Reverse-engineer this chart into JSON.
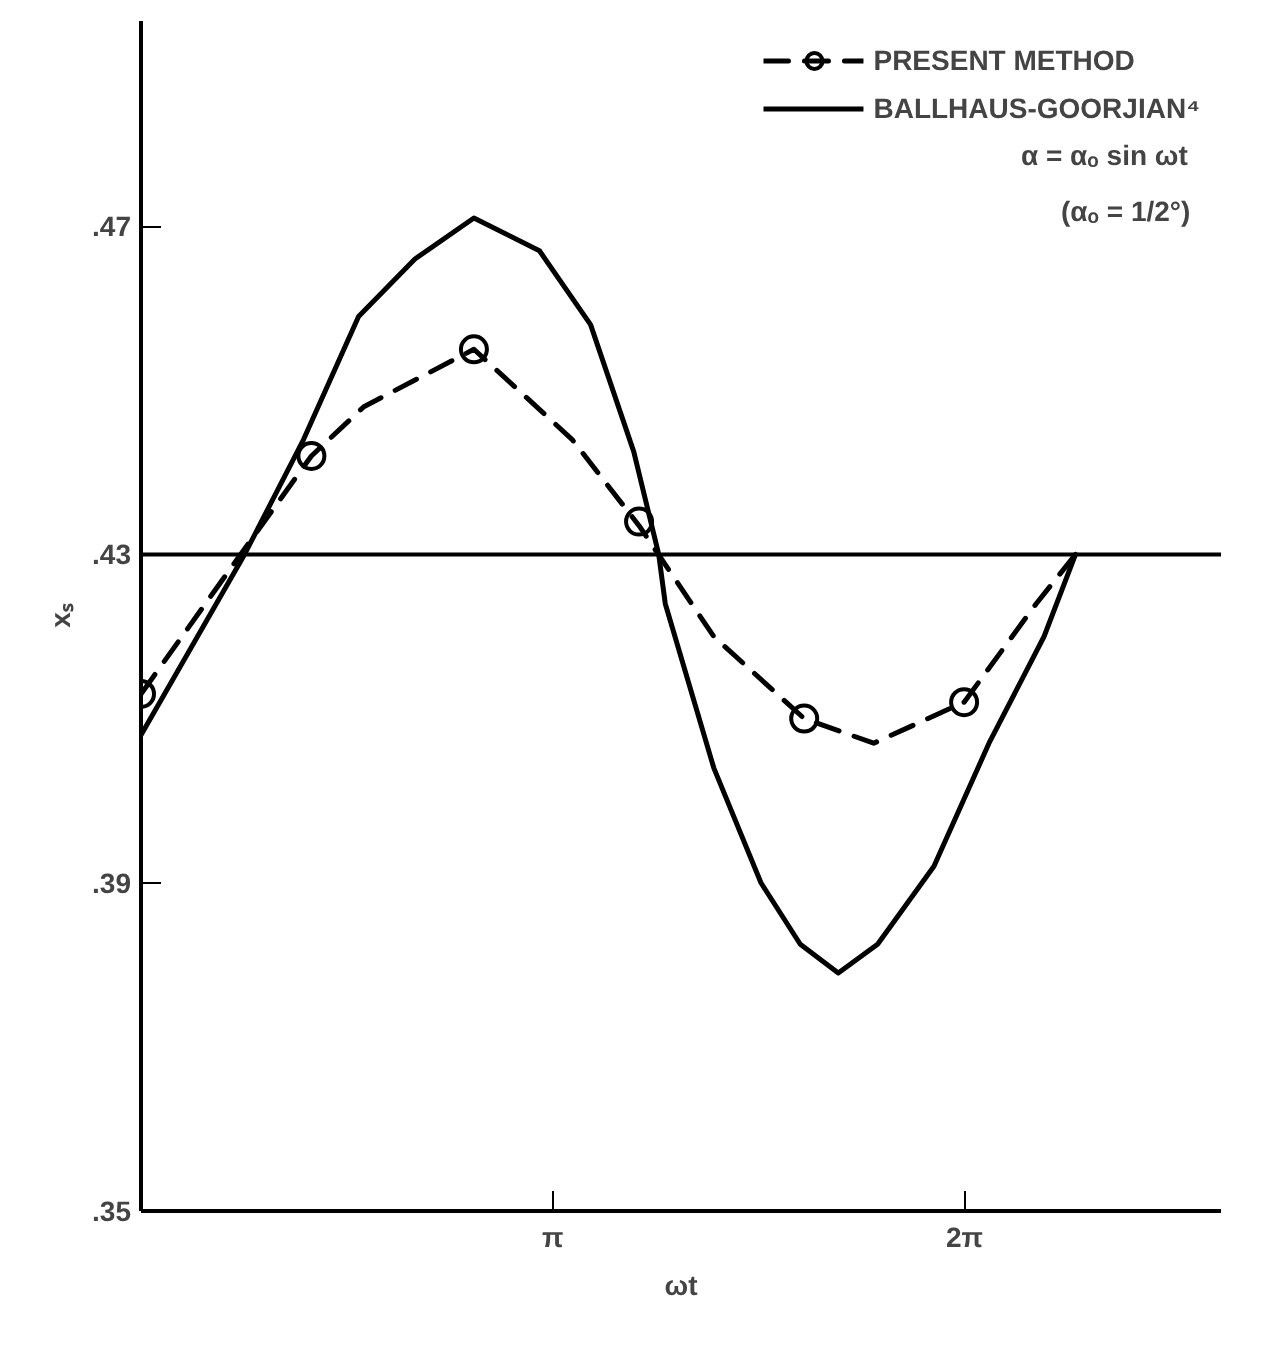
{
  "chart_data": {
    "type": "line",
    "xlabel": "ωt",
    "ylabel": "xₛ",
    "xlim": [
      0,
      8.24
    ],
    "ylim": [
      0.35,
      0.495
    ],
    "xticks": [
      {
        "value": 3.1416,
        "label": "π"
      },
      {
        "value": 6.2832,
        "label": "2π"
      }
    ],
    "yticks": [
      {
        "value": 0.35,
        "label": ".35"
      },
      {
        "value": 0.39,
        "label": ".39"
      },
      {
        "value": 0.43,
        "label": ".43"
      },
      {
        "value": 0.47,
        "label": ".47"
      }
    ],
    "grid": false,
    "legend": "top right",
    "ref_lines": [
      {
        "axis": "y",
        "value": 0.43,
        "color": "#000000",
        "line_style": "solid"
      }
    ],
    "annotations": [
      "α = αₒ sin ωt",
      "(αₒ = 1/2°)"
    ],
    "series": [
      {
        "name": "PRESENT METHOD",
        "type": "scatter",
        "marker": "circle",
        "color": "#000000",
        "x": [
          0,
          1.3,
          2.54,
          3.8,
          5.06,
          6.28
        ],
        "values": [
          0.413,
          0.442,
          0.455,
          0.434,
          0.41,
          0.412
        ]
      },
      {
        "line_style": "dashed",
        "marker": "none",
        "color": "#000000",
        "x": [
          0,
          0.76,
          1.3,
          1.7,
          2.54,
          3.29,
          3.8,
          4.37,
          5.06,
          5.59,
          6.28,
          6.83,
          7.13
        ],
        "values": [
          0.413,
          0.43,
          0.442,
          0.448,
          0.455,
          0.444,
          0.4335,
          0.42,
          0.41,
          0.407,
          0.412,
          0.424,
          0.43
        ]
      },
      {
        "name": "BALLHAUS-GOORJIAN⁴",
        "line_style": "solid",
        "marker": "none",
        "color": "#000000",
        "x": [
          0,
          0.79,
          1.24,
          1.66,
          2.09,
          2.54,
          3.04,
          3.43,
          3.76,
          3.95,
          4.0,
          4.37,
          4.73,
          5.03,
          5.32,
          5.62,
          6.05,
          6.47,
          6.89,
          7.13
        ],
        "values": [
          0.408,
          0.43,
          0.444,
          0.459,
          0.466,
          0.471,
          0.467,
          0.458,
          0.4425,
          0.43,
          0.424,
          0.404,
          0.39,
          0.3825,
          0.379,
          0.3825,
          0.392,
          0.407,
          0.42,
          0.43
        ]
      }
    ]
  }
}
